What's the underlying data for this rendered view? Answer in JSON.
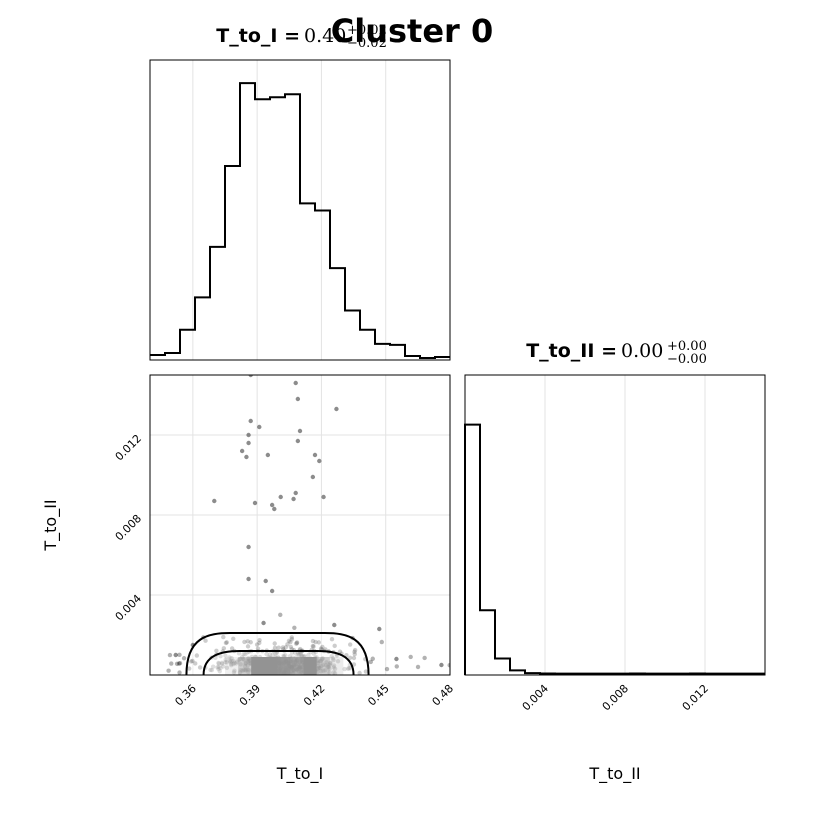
{
  "figure": {
    "title": "Cluster 0"
  },
  "chart_data": [
    {
      "type": "histogram",
      "panel": "T_to_I marginal",
      "title_name": "T_to_I",
      "title_value": "0.40",
      "title_plus": "+0.02",
      "title_minus": "−0.02",
      "xlim": [
        0.34,
        0.48
      ],
      "xticks": [
        0.36,
        0.39,
        0.42,
        0.45,
        0.48
      ],
      "bin_edges": [
        0.34,
        0.347,
        0.354,
        0.361,
        0.368,
        0.375,
        0.382,
        0.389,
        0.396,
        0.403,
        0.41,
        0.417,
        0.424,
        0.431,
        0.438,
        0.445,
        0.452,
        0.459,
        0.466,
        0.473,
        0.48
      ],
      "counts": [
        3,
        5,
        28,
        60,
        110,
        190,
        272,
        256,
        258,
        261,
        153,
        146,
        89,
        47,
        28,
        14,
        13,
        2,
        0,
        1
      ],
      "ymax": 285,
      "grid": true
    },
    {
      "type": "histogram",
      "panel": "T_to_II marginal",
      "title_name": "T_to_II",
      "title_value": "0.00",
      "title_plus": "+0.00",
      "title_minus": "−0.00",
      "xlim": [
        0.0,
        0.015
      ],
      "xticks": [
        0.004,
        0.008,
        0.012
      ],
      "tick_labels": [
        "0.004",
        "0.008",
        "0.012"
      ],
      "bin_edges": [
        0.0,
        0.00075,
        0.0015,
        0.00225,
        0.003,
        0.00375,
        0.0045,
        0.00525,
        0.006,
        0.00675,
        0.0075,
        0.00825,
        0.009,
        0.00975,
        0.0105,
        0.01125,
        0.012,
        0.01275,
        0.0135,
        0.01425,
        0.015
      ],
      "counts": [
        1370,
        350,
        85,
        20,
        5,
        3,
        2,
        2,
        2,
        2,
        2,
        3,
        2,
        2,
        2,
        3,
        2,
        2,
        2,
        2
      ],
      "ymax": 1500,
      "xlabel": "T_to_II",
      "grid": true
    },
    {
      "type": "scatter",
      "panel": "T_to_I vs T_to_II 2D",
      "xlabel": "T_to_I",
      "ylabel": "T_to_II",
      "xlim": [
        0.34,
        0.48
      ],
      "ylim": [
        0.0,
        0.015
      ],
      "xticks": [
        0.36,
        0.39,
        0.42,
        0.45,
        0.48
      ],
      "yticks": [
        0.004,
        0.008,
        0.012
      ],
      "ytick_labels": [
        "0.004",
        "0.008",
        "0.012"
      ],
      "outliers": [
        [
          0.383,
          0.0112
        ],
        [
          0.385,
          0.0109
        ],
        [
          0.386,
          0.012
        ],
        [
          0.387,
          0.0127
        ],
        [
          0.386,
          0.0116
        ],
        [
          0.391,
          0.0124
        ],
        [
          0.395,
          0.011
        ],
        [
          0.394,
          0.0047
        ],
        [
          0.386,
          0.0064
        ],
        [
          0.386,
          0.0048
        ],
        [
          0.37,
          0.0087
        ],
        [
          0.389,
          0.0086
        ],
        [
          0.397,
          0.0085
        ],
        [
          0.398,
          0.0083
        ],
        [
          0.401,
          0.0089
        ],
        [
          0.407,
          0.0088
        ],
        [
          0.408,
          0.0091
        ],
        [
          0.409,
          0.0117
        ],
        [
          0.41,
          0.0122
        ],
        [
          0.409,
          0.0138
        ],
        [
          0.408,
          0.0146
        ],
        [
          0.416,
          0.0099
        ],
        [
          0.417,
          0.011
        ],
        [
          0.419,
          0.0107
        ],
        [
          0.421,
          0.0089
        ],
        [
          0.427,
          0.0133
        ],
        [
          0.387,
          0.015
        ],
        [
          0.397,
          0.0042
        ],
        [
          0.393,
          0.0026
        ],
        [
          0.426,
          0.0025
        ],
        [
          0.352,
          0.001
        ],
        [
          0.36,
          0.0015
        ],
        [
          0.447,
          0.0023
        ],
        [
          0.455,
          0.0008
        ],
        [
          0.476,
          0.0005
        ]
      ],
      "core": {
        "x_mean": 0.402,
        "x_sd": 0.02,
        "y_scale": 0.0007
      },
      "density_band": {
        "x_from": 0.375,
        "x_to": 0.43,
        "y_to": 0.0009
      },
      "contours": [
        {
          "x_from": 0.357,
          "x_to": 0.442,
          "y_top": 0.0021
        },
        {
          "x_from": 0.365,
          "x_to": 0.435,
          "y_top": 0.0012
        }
      ],
      "grid": true
    }
  ]
}
